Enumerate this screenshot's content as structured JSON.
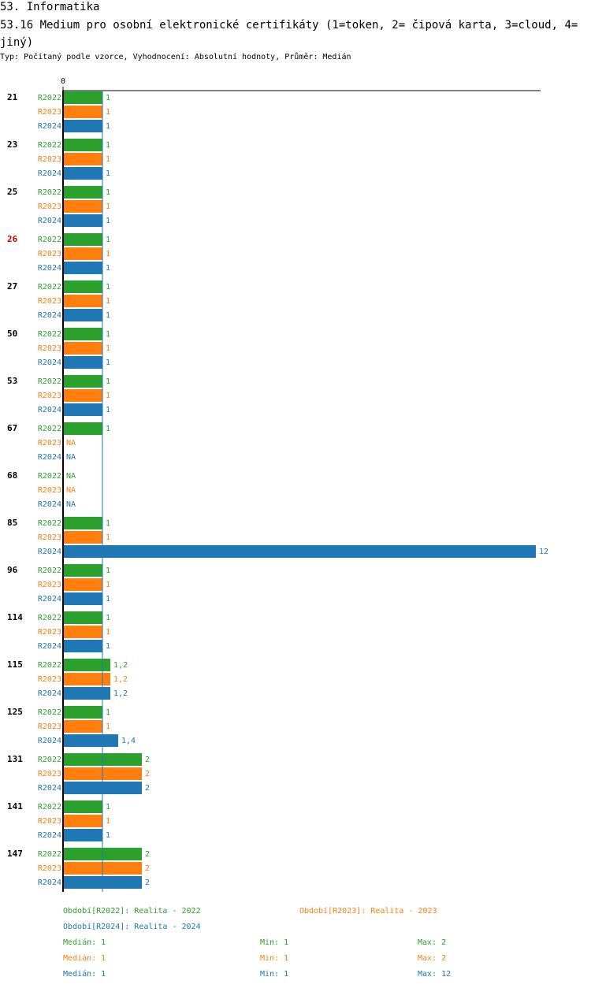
{
  "title": "53. Informatika",
  "subtitle": "53.16 Medium pro osobní elektronické certifikáty (1=token, 2= čipová karta, 3=cloud, 4=jiný)",
  "info": "Typ: Počítaný podle vzorce, Vyhodnocení: Absolutní hodnoty, Průměr: Medián",
  "colors": {
    "R2022": "#2ca02c",
    "R2023": "#ff7f0e",
    "R2024": "#1f77b4",
    "highlight_group": "#d00000"
  },
  "chart_data": {
    "type": "bar",
    "orientation": "horizontal",
    "xlim": [
      0,
      12
    ],
    "x_ticks": [
      "0"
    ],
    "median_line": 1,
    "highlighted_group": "26",
    "series_names": [
      "R2022",
      "R2023",
      "R2024"
    ],
    "groups": [
      {
        "label": "21",
        "values": [
          1,
          1,
          1
        ],
        "labels": [
          "1",
          "1",
          "1"
        ]
      },
      {
        "label": "23",
        "values": [
          1,
          1,
          1
        ],
        "labels": [
          "1",
          "1",
          "1"
        ]
      },
      {
        "label": "25",
        "values": [
          1,
          1,
          1
        ],
        "labels": [
          "1",
          "1",
          "1"
        ]
      },
      {
        "label": "26",
        "values": [
          1,
          1,
          1
        ],
        "labels": [
          "1",
          "1",
          "1"
        ]
      },
      {
        "label": "27",
        "values": [
          1,
          1,
          1
        ],
        "labels": [
          "1",
          "1",
          "1"
        ]
      },
      {
        "label": "50",
        "values": [
          1,
          1,
          1
        ],
        "labels": [
          "1",
          "1",
          "1"
        ]
      },
      {
        "label": "53",
        "values": [
          1,
          1,
          1
        ],
        "labels": [
          "1",
          "1",
          "1"
        ]
      },
      {
        "label": "67",
        "values": [
          1,
          null,
          null
        ],
        "labels": [
          "1",
          "NA",
          "NA"
        ]
      },
      {
        "label": "68",
        "values": [
          null,
          null,
          null
        ],
        "labels": [
          "NA",
          "NA",
          "NA"
        ]
      },
      {
        "label": "85",
        "values": [
          1,
          1,
          12
        ],
        "labels": [
          "1",
          "1",
          "12"
        ]
      },
      {
        "label": "96",
        "values": [
          1,
          1,
          1
        ],
        "labels": [
          "1",
          "1",
          "1"
        ]
      },
      {
        "label": "114",
        "values": [
          1,
          1,
          1
        ],
        "labels": [
          "1",
          "1",
          "1"
        ]
      },
      {
        "label": "115",
        "values": [
          1.2,
          1.2,
          1.2
        ],
        "labels": [
          "1,2",
          "1,2",
          "1,2"
        ]
      },
      {
        "label": "125",
        "values": [
          1,
          1,
          1.4
        ],
        "labels": [
          "1",
          "1",
          "1,4"
        ]
      },
      {
        "label": "131",
        "values": [
          2,
          2,
          2
        ],
        "labels": [
          "2",
          "2",
          "2"
        ]
      },
      {
        "label": "141",
        "values": [
          1,
          1,
          1
        ],
        "labels": [
          "1",
          "1",
          "1"
        ]
      },
      {
        "label": "147",
        "values": [
          2,
          2,
          2
        ],
        "labels": [
          "2",
          "2",
          "2"
        ]
      }
    ]
  },
  "legend": {
    "r2022": "Období[R2022]: Realita - 2022",
    "r2023": "Období[R2023]: Realita - 2023",
    "r2024": "Období[R2024]: Realita - 2024"
  },
  "stats": [
    {
      "median": "Medián: 1",
      "min": "Min: 1",
      "max": "Max: 2"
    },
    {
      "median": "Medián: 1",
      "min": "Min: 1",
      "max": "Max: 2"
    },
    {
      "median": "Medián: 1",
      "min": "Min: 1",
      "max": "Max: 12"
    }
  ]
}
